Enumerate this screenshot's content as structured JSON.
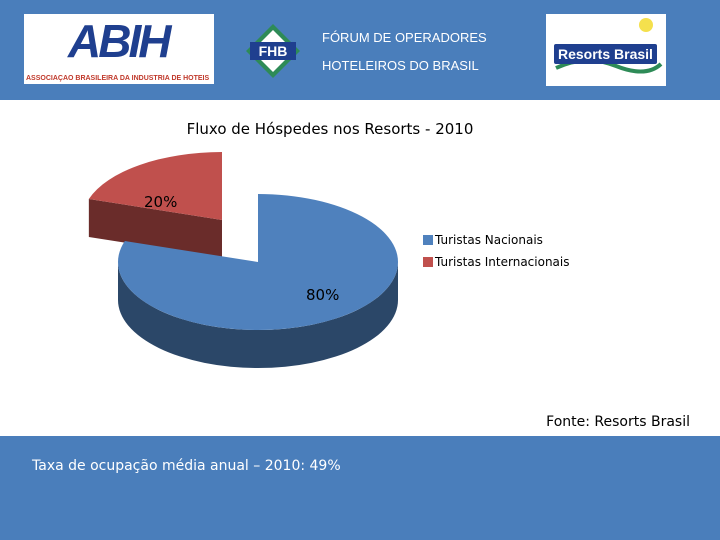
{
  "header": {
    "abih_logo_text": "ABIH",
    "abih_logo_subtitle": "ASSOCIAÇÃO BRASILEIRA DA INDÚSTRIA DE HOTÉIS",
    "fohb_logo_text": "FHB",
    "forum_line1": "FÓRUM DE OPERADORES",
    "forum_line2": "HOTELEIROS DO BRASIL",
    "resorts_logo_text": "Resorts Brasil"
  },
  "chart_data": {
    "type": "pie",
    "title": "Fluxo de Hóspedes nos Resorts - 2010",
    "categories": [
      "Turistas Nacionais",
      "Turistas Internacionais"
    ],
    "values": [
      80,
      20
    ],
    "labels": [
      "80%",
      "20%"
    ],
    "colors": [
      "#4f81bd",
      "#c0504d"
    ],
    "legend_position": "right"
  },
  "source": "Fonte: Resorts Brasil",
  "footer": {
    "text": "Taxa de ocupação média anual – 2010: 49%"
  }
}
